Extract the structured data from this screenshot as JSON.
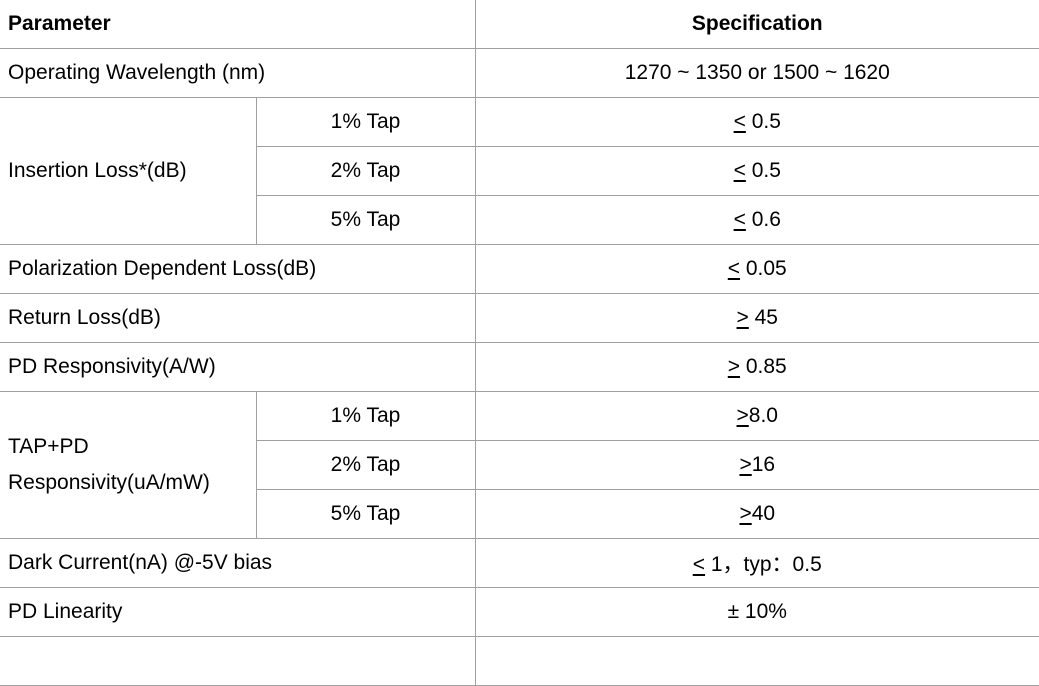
{
  "header": {
    "parameter": "Parameter",
    "specification": "Specification"
  },
  "rows": {
    "wavelength": {
      "label": "Operating Wavelength (nm)",
      "value": "1270 ~ 1350 or 1500 ~ 1620"
    },
    "insertion_loss": {
      "label": "Insertion Loss*(dB)",
      "taps": [
        {
          "tap": "1% Tap",
          "sym": "<",
          "value": " 0.5"
        },
        {
          "tap": "2% Tap",
          "sym": "<",
          "value": " 0.5"
        },
        {
          "tap": "5% Tap",
          "sym": "<",
          "value": " 0.6"
        }
      ]
    },
    "pdl": {
      "label": "Polarization Dependent Loss(dB)",
      "sym": "<",
      "value": " 0.05"
    },
    "return_loss": {
      "label": "Return Loss(dB)",
      "sym": ">",
      "value": " 45"
    },
    "pd_responsivity": {
      "label": "PD Responsivity(A/W)",
      "sym": ">",
      "value": " 0.85"
    },
    "tap_pd": {
      "label_line1": "TAP+PD",
      "label_line2": "Responsivity(uA/mW)",
      "taps": [
        {
          "tap": "1% Tap",
          "sym": ">",
          "value": "8.0"
        },
        {
          "tap": "2% Tap",
          "sym": ">",
          "value": "16"
        },
        {
          "tap": "5% Tap",
          "sym": ">",
          "value": "40"
        }
      ]
    },
    "dark_current": {
      "label": "Dark Current(nA) @-5V bias",
      "sym": "<",
      "value": " 1，typ：0.5"
    },
    "pd_linearity": {
      "label": "PD Linearity",
      "value": "± 10%"
    }
  }
}
